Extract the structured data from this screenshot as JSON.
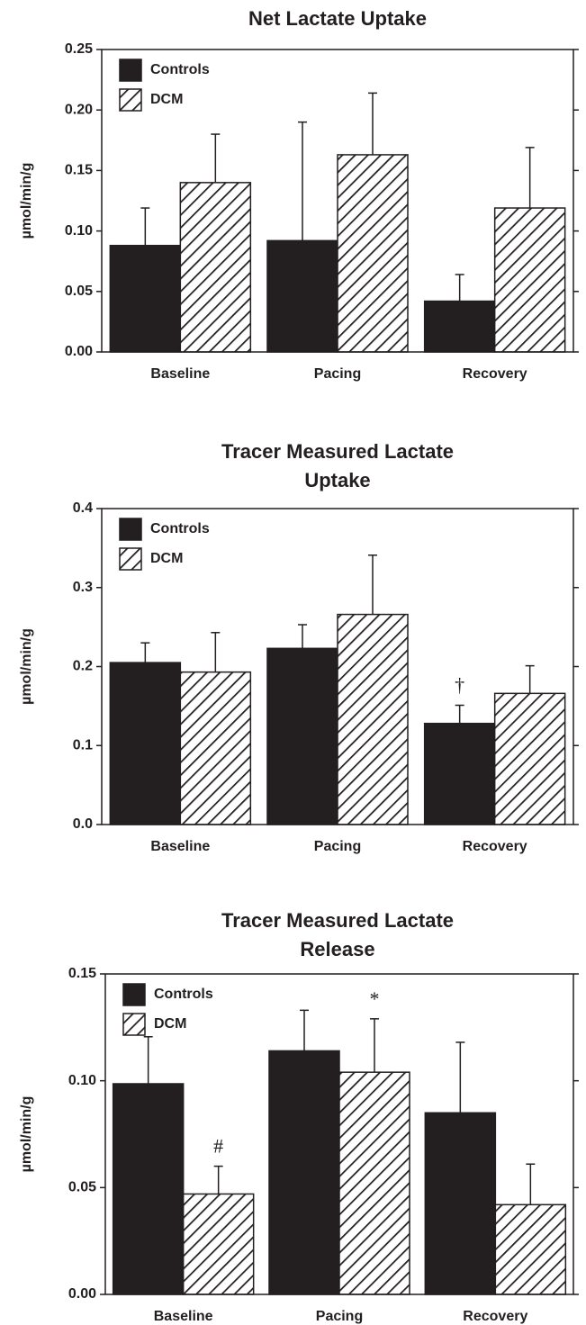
{
  "chart_data": [
    {
      "type": "bar",
      "title": [
        "Net Lactate Uptake"
      ],
      "y_label": "µmol/min/g",
      "categories": [
        "Baseline",
        "Pacing",
        "Recovery"
      ],
      "series": [
        {
          "name": "Controls",
          "color": "#231f20",
          "hatch": false,
          "values": [
            0.088,
            0.092,
            0.042
          ],
          "errors": [
            0.031,
            0.098,
            0.022
          ]
        },
        {
          "name": "DCM",
          "color": "#231f20",
          "hatch": true,
          "values": [
            0.14,
            0.163,
            0.119
          ],
          "errors": [
            0.04,
            0.051,
            0.05
          ]
        }
      ],
      "ylim": [
        0,
        0.25
      ],
      "yticks": [
        {
          "value": 0,
          "label": "0.00"
        },
        0.05,
        {
          "value": 0.1,
          "label": "0.10"
        },
        0.15,
        {
          "value": 0.2,
          "label": "0.20"
        },
        0.25
      ],
      "legend": "upper left"
    },
    {
      "type": "bar",
      "title": [
        "Tracer Measured Lactate",
        "Uptake"
      ],
      "y_label": "µmol/min/g",
      "categories": [
        "Baseline",
        "Pacing",
        "Recovery"
      ],
      "series": [
        {
          "name": "Controls",
          "color": "#231f20",
          "hatch": false,
          "values": [
            0.205,
            0.223,
            0.128
          ],
          "errors": [
            0.025,
            0.03,
            0.023
          ]
        },
        {
          "name": "DCM",
          "color": "#231f20",
          "hatch": true,
          "values": [
            0.193,
            0.266,
            0.166
          ],
          "errors": [
            0.05,
            0.075,
            0.035
          ]
        }
      ],
      "ylim": [
        0,
        0.4
      ],
      "yticks": [
        {
          "value": 0,
          "label": "0.0"
        },
        0.1,
        0.2,
        0.3,
        0.4
      ],
      "annotations": [
        {
          "text": "†"
        }
      ],
      "legend": "upper left"
    },
    {
      "type": "bar",
      "title": [
        "Tracer Measured Lactate",
        "Release"
      ],
      "y_label": "µmol/min/g",
      "categories": [
        "Baseline",
        "Pacing",
        "Recovery"
      ],
      "series": [
        {
          "name": "Controls",
          "color": "#231f20",
          "hatch": false,
          "values": [
            0.0986,
            0.114,
            0.085
          ],
          "errors": [
            0.022,
            0.019,
            0.033
          ]
        },
        {
          "name": "DCM",
          "color": "#231f20",
          "hatch": true,
          "values": [
            0.047,
            0.104,
            0.042
          ],
          "errors": [
            0.013,
            0.025,
            0.019
          ]
        }
      ],
      "ylim": [
        0,
        0.15
      ],
      "yticks": [
        {
          "value": 0,
          "label": "0.00"
        },
        0.05,
        {
          "value": 0.1,
          "label": "0.10"
        },
        0.15
      ],
      "annotations": [
        {
          "text": "#"
        },
        {
          "text": "*"
        }
      ],
      "legend": "upper left"
    }
  ]
}
